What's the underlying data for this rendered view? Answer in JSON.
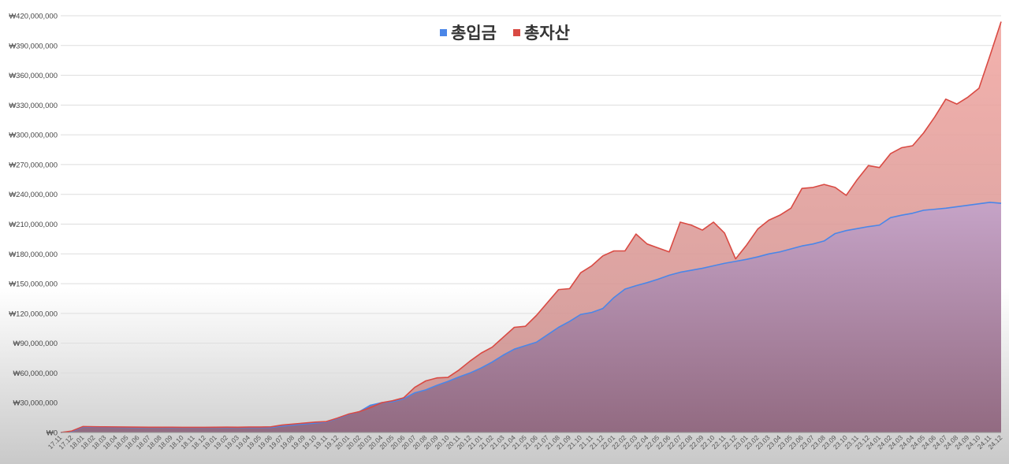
{
  "chart_data": {
    "type": "area",
    "title": "",
    "xlabel": "",
    "ylabel": "",
    "ylim": [
      0,
      420000000
    ],
    "yticks": [
      0,
      30000000,
      60000000,
      90000000,
      120000000,
      150000000,
      180000000,
      210000000,
      240000000,
      270000000,
      300000000,
      330000000,
      360000000,
      390000000,
      420000000
    ],
    "ytick_labels": [
      "₩0",
      "₩30,000,000",
      "₩60,000,000",
      "₩90,000,000",
      "₩120,000,000",
      "₩150,000,000",
      "₩180,000,000",
      "₩210,000,000",
      "₩240,000,000",
      "₩270,000,000",
      "₩300,000,000",
      "₩330,000,000",
      "₩360,000,000",
      "₩390,000,000",
      "₩420,000,000"
    ],
    "grid": true,
    "legend_position": "top-center",
    "categories": [
      "17.11",
      "17.12",
      "18.01",
      "18.02",
      "18.03",
      "18.04",
      "18.05",
      "18.06",
      "18.07",
      "18.08",
      "18.09",
      "18.10",
      "18.11",
      "18.12",
      "19.01",
      "19.02",
      "19.03",
      "19.04",
      "19.05",
      "19.06",
      "19.07",
      "19.08",
      "19.09",
      "19.10",
      "19.11",
      "19.12",
      "20.01",
      "20.02",
      "20.03",
      "20.04",
      "20.05",
      "20.06",
      "20.07",
      "20.08",
      "20.09",
      "20.10",
      "20.11",
      "20.12",
      "21.01",
      "21.02",
      "21.03",
      "21.04",
      "21.05",
      "21.06",
      "21.07",
      "21.08",
      "21.09",
      "21.10",
      "21.11",
      "21.12",
      "22.01",
      "22.02",
      "22.03",
      "22.04",
      "22.05",
      "22.06",
      "22.07",
      "22.08",
      "22.09",
      "22.10",
      "22.11",
      "22.12",
      "23.01",
      "23.02",
      "23.03",
      "23.04",
      "23.05",
      "23.06",
      "23.07",
      "23.08",
      "23.09",
      "23.10",
      "23.11",
      "23.12",
      "24.01",
      "24.02",
      "24.03",
      "24.04",
      "24.05",
      "24.06",
      "24.07",
      "24.08",
      "24.09",
      "24.10",
      "24.11",
      "24.12"
    ],
    "series": [
      {
        "name": "총입금",
        "color": "#4a86e8",
        "values": [
          0,
          1000000,
          5500000,
          5400000,
          5300000,
          5200000,
          5100000,
          5000000,
          5000000,
          5000000,
          4900000,
          4900000,
          4900000,
          4900000,
          5000000,
          5000000,
          5000000,
          5000000,
          5000000,
          5000000,
          6500000,
          7500000,
          8500000,
          9500000,
          10500000,
          14000000,
          18000000,
          21000000,
          27500000,
          30000000,
          31000000,
          34000000,
          40000000,
          43000000,
          47500000,
          51500000,
          56000000,
          60000000,
          65000000,
          71000000,
          78000000,
          84000000,
          87500000,
          91000000,
          98500000,
          106000000,
          112000000,
          119000000,
          121000000,
          125000000,
          136000000,
          144500000,
          148000000,
          151000000,
          154500000,
          158500000,
          161500000,
          163500000,
          165500000,
          168000000,
          170500000,
          172500000,
          174500000,
          177000000,
          180000000,
          182000000,
          185000000,
          188000000,
          190000000,
          193000000,
          200500000,
          203500000,
          205500000,
          207500000,
          209000000,
          216500000,
          219000000,
          221000000,
          224000000,
          225000000,
          226000000,
          227500000,
          229000000,
          230500000,
          232000000,
          231000000
        ]
      },
      {
        "name": "총자산",
        "color": "#d94a43",
        "values": [
          0,
          1500000,
          6000000,
          5800000,
          5700000,
          5600000,
          5500000,
          5400000,
          5300000,
          5300000,
          5300000,
          5200000,
          5200000,
          5200000,
          5300000,
          5400000,
          5300000,
          5500000,
          5500000,
          5700000,
          7500000,
          8500000,
          9500000,
          10500000,
          11000000,
          14500000,
          18500000,
          21000000,
          25000000,
          30000000,
          32000000,
          35000000,
          45500000,
          52000000,
          55000000,
          55500000,
          63000000,
          72000000,
          80000000,
          86000000,
          96000000,
          106000000,
          107000000,
          118000000,
          131000000,
          144000000,
          145000000,
          161000000,
          168000000,
          178000000,
          183000000,
          183000000,
          200000000,
          190000000,
          186000000,
          182000000,
          212000000,
          209000000,
          204000000,
          212000000,
          201000000,
          175000000,
          189000000,
          205000000,
          214000000,
          219000000,
          226000000,
          246000000,
          247000000,
          250000000,
          247000000,
          239000000,
          255000000,
          269000000,
          267000000,
          281000000,
          287000000,
          289000000,
          302000000,
          318000000,
          336000000,
          331000000,
          338000000,
          347000000,
          380000000,
          414000000
        ]
      }
    ]
  }
}
